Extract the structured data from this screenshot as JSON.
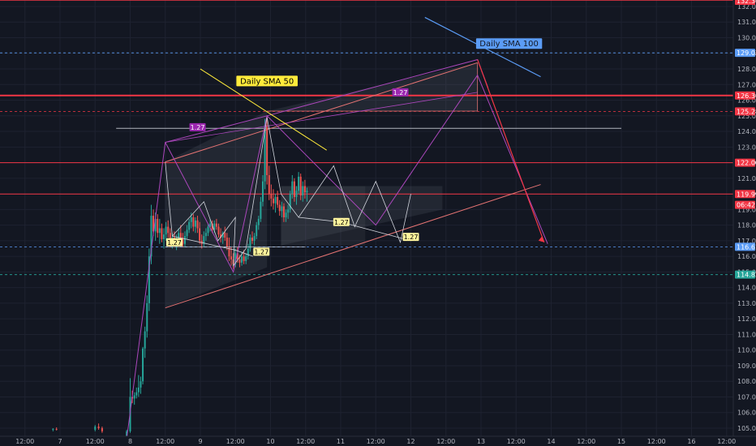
{
  "chart_data": {
    "type": "candlestick",
    "title": "",
    "ylim": [
      104.2,
      132.4
    ],
    "y_ticks": [
      105,
      106,
      107,
      108,
      109,
      110,
      111,
      112,
      113,
      114,
      115,
      116,
      117,
      118,
      119,
      120,
      121,
      122,
      123,
      124,
      125,
      126,
      127,
      128,
      129,
      130,
      131,
      132
    ],
    "y_tick_labels": [
      "105.00",
      "106.00",
      "107.00",
      "108.00",
      "109.00",
      "110.00",
      "111.00",
      "112.00",
      "113.00",
      "114.00",
      "115.00",
      "116.00",
      "117.00",
      "118.00",
      "119.00",
      "120.00",
      "121.00",
      "122.00",
      "123.00",
      "124.00",
      "125.00",
      "126.00",
      "127.00",
      "128.00",
      "129.00",
      "130.00",
      "131.00",
      "132.00"
    ],
    "x_ticks": [
      "12:00",
      "7",
      "12:00",
      "8",
      "12:00",
      "9",
      "12:00",
      "10",
      "12:00",
      "11",
      "12:00",
      "12",
      "12:00",
      "13",
      "12:00",
      "14",
      "12:00",
      "15",
      "12:00",
      "16",
      "12:00"
    ],
    "grid": true,
    "horizontal_levels": [
      {
        "value": 132.4,
        "label": "132.36",
        "color": "#f23645",
        "style": "solid"
      },
      {
        "value": 129.03,
        "label": "129.03",
        "color": "#5b9cf6",
        "style": "dashed"
      },
      {
        "value": 126.3,
        "label": "126.30",
        "color": "#f23645",
        "style": "solid"
      },
      {
        "value": 125.28,
        "label": "125.28",
        "color": "#f23645",
        "style": "dashed"
      },
      {
        "value": 122.0,
        "label": "122.00",
        "color": "#f23645",
        "style": "solid"
      },
      {
        "value": 119.99,
        "label": "119.99",
        "color": "#f23645",
        "style": "solid"
      },
      {
        "value": 116.61,
        "label": "116.61",
        "color": "#5b9cf6",
        "style": "dashed"
      },
      {
        "value": 114.83,
        "label": "114.83",
        "color": "#26a69a",
        "style": "dashed"
      }
    ],
    "price_tags": [
      {
        "value": 132.36,
        "label": "132.36",
        "color": "#f23645"
      },
      {
        "value": 129.03,
        "label": "129.03",
        "color": "#5b9cf6"
      },
      {
        "value": 126.3,
        "label": "126.30",
        "color": "#f23645"
      },
      {
        "value": 125.28,
        "label": "125.28",
        "color": "#f23645"
      },
      {
        "value": 122.0,
        "label": "122.00",
        "color": "#f23645"
      },
      {
        "value": 119.99,
        "label": "119.99",
        "color": "#f23645"
      },
      {
        "value": 119.3,
        "label": "06:42",
        "color": "#f23645"
      },
      {
        "value": 116.61,
        "label": "116.61",
        "color": "#5b9cf6"
      },
      {
        "value": 114.83,
        "label": "114.83",
        "color": "#26a69a"
      }
    ],
    "annotations": [
      {
        "text": "Daily SMA 50",
        "x_day": 9.95,
        "y": 127.2,
        "bg": "#ffeb3b",
        "color": "#000000"
      },
      {
        "text": "Daily SMA 100",
        "x_day": 13.4,
        "y": 129.6,
        "bg": "#5b9cf6",
        "color": "#131722"
      }
    ],
    "fib_labels": [
      {
        "text": "1.27",
        "x_day": 8.96,
        "y": 124.27,
        "bg": "#9c27b0",
        "color": "#ffffff"
      },
      {
        "text": "1.27",
        "x_day": 11.85,
        "y": 126.5,
        "bg": "#9c27b0",
        "color": "#ffffff"
      },
      {
        "text": "1.27",
        "x_day": 8.63,
        "y": 116.9,
        "bg": "#fff59d",
        "color": "#000000"
      },
      {
        "text": "1.27",
        "x_day": 9.87,
        "y": 116.3,
        "bg": "#fff59d",
        "color": "#000000"
      },
      {
        "text": "1.27",
        "x_day": 11.01,
        "y": 118.2,
        "bg": "#fff59d",
        "color": "#000000"
      },
      {
        "text": "1.27",
        "x_day": 12.0,
        "y": 117.25,
        "bg": "#fff59d",
        "color": "#000000"
      }
    ],
    "candles": [
      [
        6.9,
        104.9,
        105.0,
        104.8,
        104.95
      ],
      [
        6.95,
        104.95,
        105.05,
        104.85,
        104.9
      ],
      [
        7.5,
        104.9,
        105.2,
        104.8,
        105.1
      ],
      [
        7.55,
        105.1,
        105.3,
        104.9,
        105.0
      ],
      [
        7.6,
        105.0,
        105.1,
        104.7,
        104.8
      ],
      [
        7.95,
        104.4,
        104.9,
        104.2,
        104.8
      ],
      [
        8.0,
        104.8,
        108.2,
        104.7,
        107.0
      ],
      [
        8.03,
        107.0,
        107.4,
        106.6,
        106.9
      ],
      [
        8.06,
        106.9,
        107.3,
        106.5,
        107.1
      ],
      [
        8.09,
        107.1,
        107.6,
        106.9,
        107.3
      ],
      [
        8.12,
        107.3,
        108.4,
        107.0,
        107.6
      ],
      [
        8.15,
        107.6,
        108.3,
        107.2,
        108.0
      ],
      [
        8.18,
        108.0,
        110.2,
        107.8,
        110.1
      ],
      [
        8.21,
        110.1,
        111.5,
        109.5,
        111.2
      ],
      [
        8.24,
        111.2,
        113.5,
        110.8,
        113.0
      ],
      [
        8.27,
        113.0,
        116.5,
        112.5,
        116.0
      ],
      [
        8.3,
        116.0,
        119.3,
        115.5,
        118.6
      ],
      [
        8.33,
        118.6,
        119.0,
        117.3,
        117.6
      ],
      [
        8.36,
        117.6,
        118.8,
        117.0,
        118.4
      ],
      [
        8.39,
        118.4,
        118.7,
        117.2,
        117.5
      ],
      [
        8.42,
        117.5,
        118.4,
        116.8,
        117.8
      ],
      [
        8.45,
        117.8,
        118.1,
        116.9,
        117.1
      ],
      [
        8.48,
        117.1,
        117.8,
        116.5,
        117.4
      ],
      [
        8.51,
        117.4,
        118.2,
        117.0,
        117.9
      ],
      [
        8.54,
        117.9,
        118.3,
        117.2,
        117.5
      ],
      [
        8.57,
        117.5,
        117.8,
        116.6,
        116.9
      ],
      [
        8.6,
        116.9,
        117.5,
        116.5,
        117.2
      ],
      [
        8.63,
        117.2,
        117.6,
        116.7,
        116.9
      ],
      [
        8.66,
        116.9,
        117.4,
        116.4,
        117.0
      ],
      [
        8.69,
        117.0,
        117.8,
        116.8,
        117.5
      ],
      [
        8.72,
        117.5,
        118.0,
        117.0,
        117.2
      ],
      [
        8.75,
        117.2,
        117.5,
        116.6,
        116.8
      ],
      [
        8.78,
        116.8,
        117.6,
        116.6,
        117.3
      ],
      [
        8.81,
        117.3,
        118.0,
        117.1,
        117.7
      ],
      [
        8.84,
        117.7,
        118.4,
        117.5,
        118.2
      ],
      [
        8.87,
        118.2,
        118.8,
        117.8,
        118.5
      ],
      [
        8.9,
        118.5,
        118.7,
        117.6,
        117.9
      ],
      [
        8.93,
        117.9,
        118.5,
        117.5,
        118.3
      ],
      [
        8.96,
        118.3,
        118.6,
        117.5,
        117.8
      ],
      [
        8.99,
        117.8,
        118.2,
        116.8,
        117.0
      ],
      [
        9.02,
        117.0,
        117.4,
        116.5,
        116.8
      ],
      [
        9.05,
        116.8,
        117.6,
        116.6,
        117.3
      ],
      [
        9.08,
        117.3,
        117.8,
        117.0,
        117.5
      ],
      [
        9.11,
        117.5,
        118.1,
        117.3,
        117.9
      ],
      [
        9.14,
        117.9,
        118.4,
        117.6,
        118.1
      ],
      [
        9.17,
        118.1,
        118.3,
        117.5,
        117.7
      ],
      [
        9.2,
        117.7,
        118.3,
        117.5,
        118.1
      ],
      [
        9.23,
        118.1,
        118.4,
        117.7,
        117.9
      ],
      [
        9.26,
        117.9,
        118.1,
        117.2,
        117.4
      ],
      [
        9.29,
        117.4,
        117.8,
        116.9,
        117.2
      ],
      [
        9.32,
        117.2,
        117.6,
        116.8,
        117.5
      ],
      [
        9.35,
        117.5,
        117.9,
        117.0,
        117.2
      ],
      [
        9.38,
        117.2,
        117.5,
        116.4,
        116.6
      ],
      [
        9.41,
        116.6,
        117.2,
        115.7,
        116.0
      ],
      [
        9.44,
        116.0,
        116.6,
        115.4,
        115.8
      ],
      [
        9.47,
        115.8,
        116.2,
        115.2,
        115.5
      ],
      [
        9.5,
        115.5,
        116.5,
        115.3,
        116.2
      ],
      [
        9.53,
        116.2,
        116.6,
        115.6,
        115.8
      ],
      [
        9.56,
        115.8,
        116.1,
        115.3,
        115.6
      ],
      [
        9.59,
        115.6,
        116.3,
        115.4,
        116.0
      ],
      [
        9.62,
        116.0,
        116.4,
        115.5,
        115.7
      ],
      [
        9.65,
        115.7,
        116.2,
        115.5,
        116.0
      ],
      [
        9.68,
        116.0,
        116.8,
        115.8,
        116.5
      ],
      [
        9.71,
        116.5,
        117.4,
        116.3,
        117.2
      ],
      [
        9.74,
        117.2,
        117.6,
        116.8,
        117.0
      ],
      [
        9.77,
        117.0,
        117.5,
        116.7,
        117.3
      ],
      [
        9.8,
        117.3,
        118.2,
        117.1,
        118.0
      ],
      [
        9.83,
        118.0,
        118.6,
        117.7,
        118.4
      ],
      [
        9.86,
        118.4,
        119.8,
        118.2,
        119.5
      ],
      [
        9.89,
        119.5,
        121.2,
        119.2,
        120.8
      ],
      [
        9.92,
        120.8,
        124.8,
        120.3,
        124.4
      ],
      [
        9.95,
        124.4,
        125.0,
        120.6,
        121.2
      ],
      [
        9.98,
        121.2,
        121.8,
        119.6,
        120.0
      ],
      [
        10.01,
        120.0,
        120.6,
        119.2,
        119.7
      ],
      [
        10.04,
        119.7,
        120.3,
        119.0,
        119.4
      ],
      [
        10.07,
        119.4,
        120.0,
        118.8,
        119.8
      ],
      [
        10.1,
        119.8,
        120.2,
        119.1,
        119.3
      ],
      [
        10.13,
        119.3,
        119.6,
        118.6,
        118.9
      ],
      [
        10.16,
        118.9,
        119.5,
        118.5,
        119.2
      ],
      [
        10.19,
        119.2,
        119.4,
        118.2,
        118.5
      ],
      [
        10.22,
        118.5,
        119.0,
        118.2,
        118.8
      ],
      [
        10.25,
        118.8,
        119.3,
        118.4,
        119.0
      ],
      [
        10.28,
        119.0,
        120.2,
        118.8,
        120.0
      ],
      [
        10.31,
        120.0,
        121.2,
        119.7,
        120.8
      ],
      [
        10.34,
        120.8,
        121.0,
        119.5,
        119.8
      ],
      [
        10.37,
        119.8,
        120.5,
        119.3,
        120.2
      ],
      [
        10.4,
        120.2,
        121.4,
        120.0,
        121.1
      ],
      [
        10.43,
        121.1,
        121.3,
        119.6,
        119.9
      ],
      [
        10.46,
        119.9,
        120.8,
        119.5,
        120.5
      ],
      [
        10.49,
        120.5,
        120.9,
        119.7,
        120.1
      ],
      [
        10.52,
        120.1,
        120.4,
        119.5,
        120.2
      ]
    ]
  }
}
